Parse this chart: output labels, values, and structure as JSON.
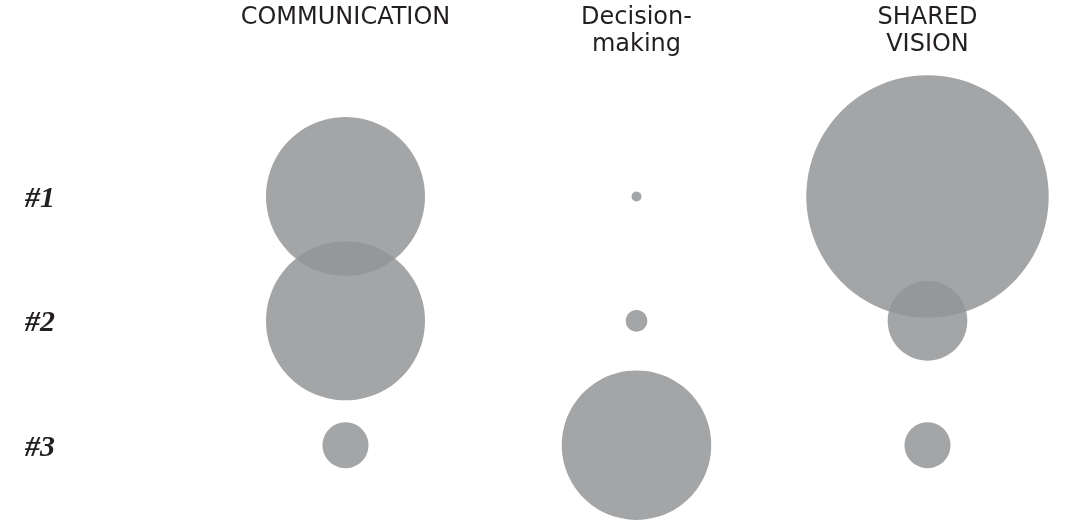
{
  "chart_data": {
    "type": "bubble",
    "categories": [
      "COMMUNICATION",
      "Decision-making",
      "SHARED VISION"
    ],
    "ylim": [
      3.65,
      -0.58
    ],
    "yticks": [
      {
        "value": 1,
        "label": "#1"
      },
      {
        "value": 2,
        "label": "#2"
      },
      {
        "value": 3,
        "label": "#3"
      }
    ],
    "series": [
      {
        "color": "#939598",
        "values": [
          1,
          1,
          1
        ],
        "sizes": [
          0.43,
          0.0017,
          1
        ]
      },
      {
        "color": "#939598",
        "values": [
          2,
          2,
          2
        ],
        "sizes": [
          0.43,
          0.008,
          0.108
        ]
      },
      {
        "color": "#939598",
        "values": [
          3,
          3,
          3
        ],
        "sizes": [
          0.036,
          0.38,
          0.036
        ]
      }
    ]
  }
}
